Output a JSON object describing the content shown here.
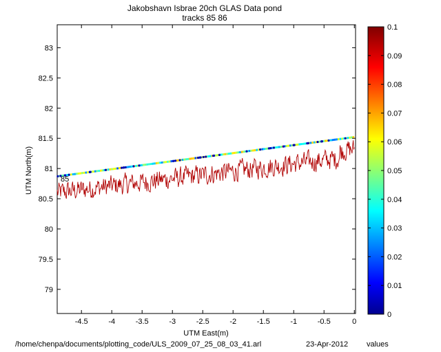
{
  "chart_data": {
    "type": "scatter",
    "title": "Jakobshavn Isbrae 20ch GLAS Data pond",
    "subtitle": "tracks 85  86",
    "xlabel": "UTM East(m)",
    "ylabel": "UTM North(m)",
    "xlim": [
      -4.9,
      0.02
    ],
    "ylim": [
      78.6,
      83.38
    ],
    "xticks": [
      "-4.5",
      "-4",
      "-3.5",
      "-3",
      "-2.5",
      "-2",
      "-1.5",
      "-1",
      "-0.5",
      "0"
    ],
    "xtick_values": [
      -4.5,
      -4,
      -3.5,
      -3,
      -2.5,
      -2,
      -1.5,
      -1,
      -0.5,
      0
    ],
    "yticks": [
      "79",
      "79.5",
      "80",
      "80.5",
      "81",
      "81.5",
      "82",
      "82.5",
      "83"
    ],
    "ytick_values": [
      79,
      79.5,
      80,
      80.5,
      81,
      81.5,
      82,
      82.5,
      83
    ],
    "grid": false,
    "track_label": "85",
    "track": {
      "x_start": -4.9,
      "y_start": 80.87,
      "x_end": 0.0,
      "y_end": 81.52,
      "note_values_range": [
        0.01,
        0.07
      ]
    },
    "noise_series": {
      "color": "#b00000",
      "x_start": -4.9,
      "x_end": 0.0,
      "y_start_mean": 80.6,
      "y_end_mean": 81.2,
      "spread": 0.17
    },
    "colorbar": {
      "min": 0,
      "max": 0.1,
      "ticks": [
        "0",
        "0.01",
        "0.02",
        "0.03",
        "0.04",
        "0.05",
        "0.06",
        "0.07",
        "0.08",
        "0.09",
        "0.1"
      ],
      "tick_values": [
        0,
        0.01,
        0.02,
        0.03,
        0.04,
        0.05,
        0.06,
        0.07,
        0.08,
        0.09,
        0.1
      ],
      "colormap": "jet"
    }
  },
  "footer": {
    "path": "/home/chenpa/documents/plotting_code/ULS_2009_07_25_08_03_41.arl",
    "date": "23-Apr-2012",
    "values_label": "values"
  }
}
